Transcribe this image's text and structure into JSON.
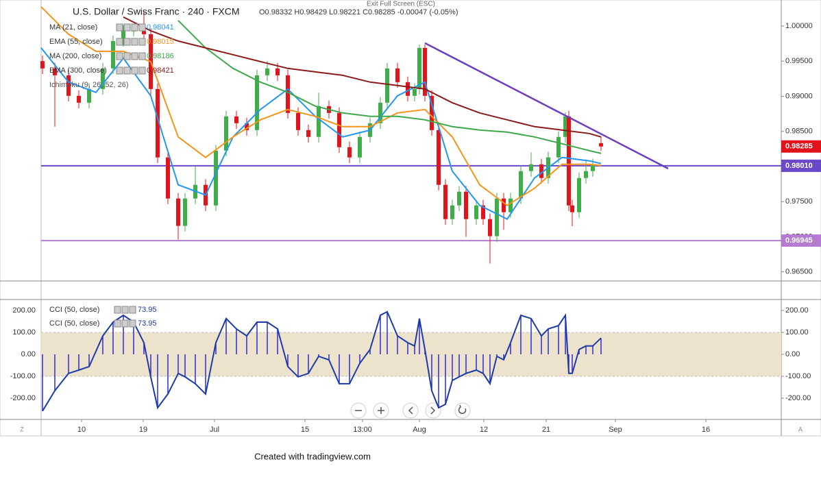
{
  "chart_data": [
    {
      "type": "candlestick",
      "title": "U.S. Dollar / Swiss Franc · 240 · FXCM",
      "ohlc_text": "O0.98332  H0.98429  L0.98221  C0.98285  -0.00047 (-0.05%)",
      "up_color": "#3fae49",
      "down_color": "#e3131b",
      "xlim": [
        0,
        108
      ],
      "ylim": [
        0.9637,
        1.0037
      ],
      "yticks": [
        {
          "value": 1.0,
          "label": "1.00000"
        },
        {
          "value": 0.995,
          "label": "0.99500"
        },
        {
          "value": 0.99,
          "label": "0.99000"
        },
        {
          "value": 0.985,
          "label": "0.98500"
        },
        {
          "value": 0.98,
          "label": "0.98000"
        },
        {
          "value": 0.975,
          "label": "0.97500"
        },
        {
          "value": 0.97,
          "label": "0.97000"
        },
        {
          "value": 0.965,
          "label": "0.96500"
        }
      ],
      "x": [
        0.2,
        2,
        4,
        5.5,
        7,
        9,
        10.5,
        12,
        13.5,
        15,
        16,
        17,
        18.5,
        20,
        21,
        22.5,
        24,
        25.5,
        27,
        28.5,
        30,
        31.5,
        33,
        34.5,
        36,
        37.5,
        39,
        40.5,
        42,
        43.5,
        45,
        46.5,
        48,
        49.5,
        50.5,
        52,
        53.5,
        54.5,
        55.2,
        56,
        57,
        58,
        59,
        60,
        61,
        62,
        63.5,
        64.5,
        65.5,
        66.5,
        67.5,
        68.5,
        70,
        71.5,
        73,
        74,
        75.5,
        76.5,
        77,
        77.5,
        78.5,
        79.5,
        80.5,
        81.7
      ],
      "open": [
        0.995,
        0.99396,
        0.99298,
        0.99006,
        0.98908,
        0.99103,
        0.99396,
        0.99786,
        0.99932,
        0.99932,
        0.99883,
        0.99103,
        0.98129,
        0.97544,
        0.97154,
        0.97544,
        0.97739,
        0.97446,
        0.98226,
        0.98713,
        0.98616,
        0.98518,
        0.99298,
        0.99396,
        0.99298,
        0.98762,
        0.98518,
        0.98421,
        0.9886,
        0.98762,
        0.98275,
        0.98129,
        0.98421,
        0.98616,
        0.98908,
        0.99396,
        0.99201,
        0.99006,
        0.99103,
        0.99688,
        0.99006,
        0.98518,
        0.97739,
        0.97251,
        0.97446,
        0.97641,
        0.97251,
        0.97446,
        0.97251,
        0.97008,
        0.97544,
        0.97349,
        0.97544,
        0.97934,
        0.98031,
        0.97836,
        0.98129,
        0.98421,
        0.98713,
        0.97446,
        0.97349,
        0.97836,
        0.97934,
        0.98332
      ],
      "high": [
        0.9958,
        0.99476,
        0.99378,
        0.99086,
        0.99183,
        0.99476,
        0.99866,
        1.00012,
        1.00012,
        1.002,
        0.99963,
        0.99183,
        0.98209,
        0.97624,
        0.97624,
        0.98,
        0.97819,
        0.98306,
        0.98793,
        0.98793,
        0.98696,
        0.99378,
        0.995,
        0.99476,
        0.99378,
        0.98842,
        0.98598,
        0.9905,
        0.9894,
        0.98842,
        0.98355,
        0.98501,
        0.98696,
        0.98988,
        0.99476,
        0.99476,
        0.99281,
        0.99183,
        0.99737,
        0.99737,
        0.99086,
        0.98598,
        0.97819,
        0.97526,
        0.97721,
        0.97721,
        0.97526,
        0.97526,
        0.97331,
        0.97624,
        0.97624,
        0.97624,
        0.98014,
        0.982,
        0.98111,
        0.98209,
        0.98501,
        0.9877,
        0.98793,
        0.97526,
        0.97916,
        0.981,
        0.98111,
        0.98429
      ],
      "low": [
        0.99316,
        0.98567,
        0.98926,
        0.98828,
        0.98828,
        0.99023,
        0.99316,
        0.99706,
        0.99852,
        0.99803,
        0.99023,
        0.98049,
        0.97464,
        0.9696,
        0.97074,
        0.97464,
        0.97366,
        0.97366,
        0.98146,
        0.98536,
        0.98438,
        0.98438,
        0.99218,
        0.99218,
        0.98682,
        0.98438,
        0.98341,
        0.98341,
        0.98682,
        0.98195,
        0.98049,
        0.98049,
        0.98341,
        0.98536,
        0.98828,
        0.99121,
        0.98926,
        0.98926,
        0.99023,
        0.98926,
        0.98438,
        0.97659,
        0.97171,
        0.97171,
        0.97366,
        0.97,
        0.97171,
        0.97171,
        0.96617,
        0.96928,
        0.971,
        0.97269,
        0.97464,
        0.97854,
        0.97756,
        0.97756,
        0.98049,
        0.98341,
        0.97366,
        0.9715,
        0.97269,
        0.97756,
        0.97854,
        0.98221
      ],
      "close": [
        0.99396,
        0.99298,
        0.99006,
        0.98908,
        0.99103,
        0.99396,
        0.99786,
        0.99932,
        0.99932,
        0.99883,
        0.99103,
        0.98129,
        0.97544,
        0.97154,
        0.97544,
        0.97739,
        0.97446,
        0.98226,
        0.98713,
        0.98616,
        0.98518,
        0.99298,
        0.99396,
        0.99298,
        0.98762,
        0.98518,
        0.98421,
        0.9886,
        0.98762,
        0.98275,
        0.98129,
        0.98421,
        0.98616,
        0.98908,
        0.99396,
        0.99201,
        0.99006,
        0.99103,
        0.99688,
        0.99006,
        0.98518,
        0.97739,
        0.97251,
        0.97446,
        0.97641,
        0.97251,
        0.97446,
        0.97251,
        0.97008,
        0.97544,
        0.97349,
        0.97544,
        0.97934,
        0.98031,
        0.97836,
        0.98129,
        0.98421,
        0.98713,
        0.97446,
        0.97349,
        0.97836,
        0.97934,
        0.98031,
        0.98285
      ],
      "overlay_x": [
        0,
        4,
        8,
        12,
        16,
        20,
        24,
        28,
        32,
        36,
        40,
        44,
        48,
        52,
        56,
        60,
        64,
        68,
        72,
        76,
        80,
        81.7
      ],
      "overlays": [
        {
          "name": "MA (21, close)",
          "last_label": "0.98041",
          "color": "#2196f3",
          "values": [
            0.99688,
            0.99201,
            0.99055,
            0.99542,
            0.99006,
            0.97739,
            0.97593,
            0.98421,
            0.98811,
            0.99103,
            0.98713,
            0.98421,
            0.98518,
            0.99006,
            0.99201,
            0.97934,
            0.97446,
            0.97251,
            0.97836,
            0.98129,
            0.9808,
            0.98041
          ]
        },
        {
          "name": "EMA (55, close)",
          "last_label": "0.98015",
          "color": "#f7931a",
          "values": [
            1.00273,
            0.99883,
            0.99639,
            0.99639,
            0.99493,
            0.98421,
            0.98129,
            0.98421,
            0.98665,
            0.98811,
            0.98713,
            0.98567,
            0.98567,
            0.98762,
            0.98811,
            0.98421,
            0.97739,
            0.97446,
            0.9769,
            0.98031,
            0.98031,
            0.98015
          ]
        },
        {
          "name": "MA (200, close)",
          "last_label": "0.98186",
          "color": "#3ca84a",
          "values": [
            null,
            null,
            null,
            null,
            null,
            1.00078,
            0.99688,
            0.99396,
            0.99201,
            0.99055,
            0.9886,
            0.98762,
            0.98713,
            0.98713,
            0.98665,
            0.98567,
            0.98518,
            0.98489,
            0.98421,
            0.98324,
            0.98226,
            0.98186
          ]
        },
        {
          "name": "EMA (300, close)",
          "last_label": "0.98421",
          "color": "#8b1a1a",
          "values": [
            null,
            null,
            null,
            1.00127,
            0.99932,
            0.99786,
            0.99688,
            0.99591,
            0.99493,
            0.99396,
            0.99347,
            0.99298,
            0.99201,
            0.99152,
            0.99103,
            0.98908,
            0.98762,
            0.98665,
            0.98567,
            0.98518,
            0.9847,
            0.98421
          ]
        }
      ],
      "extra_legend": "Ichimoku (9, 26, 52, 26)",
      "trendline": {
        "color": "#6a3fc0",
        "x": [
          56,
          91.5
        ],
        "values": [
          0.99757,
          0.9797
        ]
      },
      "levels": [
        {
          "value": 0.9801,
          "label": "0.98010",
          "color": "#6b48c8"
        },
        {
          "value": 0.96945,
          "label": "0.96945",
          "color": "#b57bd1"
        }
      ],
      "last_price": {
        "value": 0.98285,
        "label": "0.98285",
        "color": "#e3131b"
      }
    },
    {
      "type": "oscillator",
      "legends": [
        {
          "name": "CCI (50, close)",
          "last_label": "73.95"
        },
        {
          "name": "CCI (50, close)",
          "last_label": "73.95"
        }
      ],
      "color": "#1b3aa8",
      "bar_color": "#2b2bd0",
      "band": [
        -100,
        100
      ],
      "band_color": "#ede2cc",
      "xlim": [
        0,
        108
      ],
      "ylim": [
        -297,
        250
      ],
      "yticks": [
        {
          "value": 200,
          "label": "200.00"
        },
        {
          "value": 100,
          "label": "100.00"
        },
        {
          "value": 0,
          "label": "0.00"
        },
        {
          "value": -100,
          "label": "-100.00"
        },
        {
          "value": -200,
          "label": "-200.00"
        }
      ],
      "xticks": [
        {
          "value": 5.9,
          "label": "10"
        },
        {
          "value": 14.9,
          "label": "19"
        },
        {
          "value": 25.3,
          "label": "Jul"
        },
        {
          "value": 38.5,
          "label": "15"
        },
        {
          "value": 46.9,
          "label": "13:00"
        },
        {
          "value": 55.2,
          "label": "Aug"
        },
        {
          "value": 64.6,
          "label": "12"
        },
        {
          "value": 73.7,
          "label": "21"
        },
        {
          "value": 83.8,
          "label": "Sep"
        },
        {
          "value": 97,
          "label": "16"
        }
      ],
      "x": [
        0.2,
        2,
        4,
        5.5,
        7,
        9,
        10.5,
        12,
        13.5,
        15,
        16,
        17,
        18.5,
        20,
        21,
        22.5,
        24,
        25.5,
        27,
        28.5,
        30,
        31.5,
        33,
        34.5,
        36,
        37.5,
        39,
        40.5,
        42,
        43.5,
        45,
        46.5,
        48,
        49.5,
        50.5,
        52,
        53.5,
        54.5,
        55.2,
        56,
        57,
        58,
        59,
        60,
        61,
        62,
        63.5,
        64.5,
        65.5,
        66.5,
        67.5,
        68.5,
        70,
        71.5,
        73,
        74,
        75.5,
        76.5,
        77,
        77.5,
        78.5,
        79.5,
        80.5,
        81.7
      ],
      "values": [
        -259,
        -166,
        -87,
        -72,
        -56,
        84,
        147,
        178,
        147,
        53,
        -103,
        -244,
        -181,
        -87,
        -103,
        -134,
        -181,
        53,
        163,
        116,
        84,
        147,
        147,
        116,
        -56,
        -103,
        -87,
        -9,
        -25,
        -134,
        -134,
        -41,
        22,
        178,
        194,
        84,
        53,
        38,
        163,
        22,
        -166,
        -244,
        -228,
        -119,
        -103,
        -87,
        -72,
        -87,
        -134,
        -9,
        -25,
        53,
        178,
        163,
        84,
        116,
        131,
        178,
        -87,
        -87,
        22,
        38,
        38,
        73.95
      ]
    }
  ],
  "ui": {
    "exit": "Exit Full Screen (ESC)",
    "left_button": "Z",
    "right_button": "A",
    "footer": "Created with tradingview.com"
  }
}
